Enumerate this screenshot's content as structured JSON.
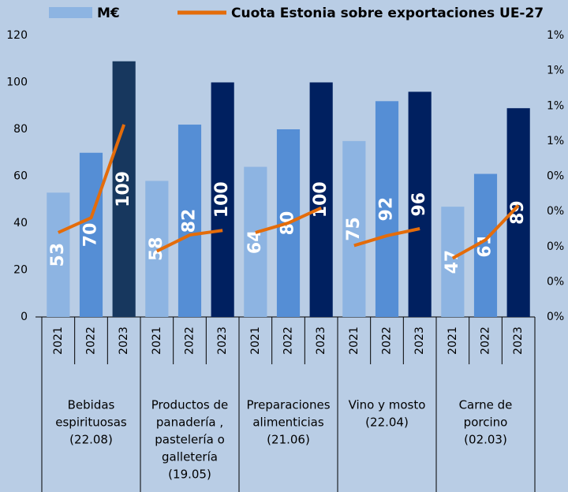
{
  "chart_data": {
    "type": "bar_line",
    "categories": [
      "2021",
      "2022",
      "2023",
      "2021",
      "2022",
      "2023",
      "2021",
      "2022",
      "2023",
      "2021",
      "2022",
      "2023",
      "2021",
      "2022",
      "2023"
    ],
    "groups": [
      [
        "Bebidas",
        "espirituosas",
        "(22.08)"
      ],
      [
        "Productos de",
        "panadería ,",
        "pastelería o",
        "galletería",
        "(19.05)"
      ],
      [
        "Preparaciones",
        "alimenticias",
        "(21.06)"
      ],
      [
        "Vino y mosto",
        "(22.04)"
      ],
      [
        "Carne de",
        "porcino",
        "(02.03)"
      ]
    ],
    "series": [
      {
        "name": "M€",
        "color": "#8db4e2",
        "colors": [
          "#8db4e2",
          "#558ed5",
          "#17375e",
          "#8db4e2",
          "#558ed5",
          "#002060",
          "#8db4e2",
          "#558ed5",
          "#002060",
          "#8db4e2",
          "#558ed5",
          "#002060",
          "#8db4e2",
          "#558ed5",
          "#002060"
        ],
        "values": [
          53,
          70,
          109,
          58,
          82,
          100,
          64,
          80,
          100,
          75,
          92,
          96,
          47,
          61,
          89
        ]
      },
      {
        "name": "Cuota Estonia sobre exportaciones UE-27",
        "color": "#e46c0a",
        "axis": "y2",
        "values": [
          0.24,
          0.282,
          0.547,
          0.187,
          0.233,
          0.246,
          0.24,
          0.267,
          0.31,
          0.203,
          0.231,
          0.251,
          0.167,
          0.219,
          0.317
        ]
      }
    ],
    "ylim": [
      0,
      120
    ],
    "yticks": [
      0,
      20,
      40,
      60,
      80,
      100,
      120
    ],
    "y2lim": [
      0,
      0.8
    ],
    "y2ticks": [
      {
        "value": 0,
        "label": "0%"
      },
      {
        "value": 0.1,
        "label": "0%"
      },
      {
        "value": 0.2,
        "label": "0%"
      },
      {
        "value": 0.3,
        "label": "0%"
      },
      {
        "value": 0.4,
        "label": "0%"
      },
      {
        "value": 0.5,
        "label": "1%"
      },
      {
        "value": 0.6,
        "label": "1%"
      },
      {
        "value": 0.7,
        "label": "1%"
      },
      {
        "value": 0.8,
        "label": "1%"
      }
    ]
  }
}
